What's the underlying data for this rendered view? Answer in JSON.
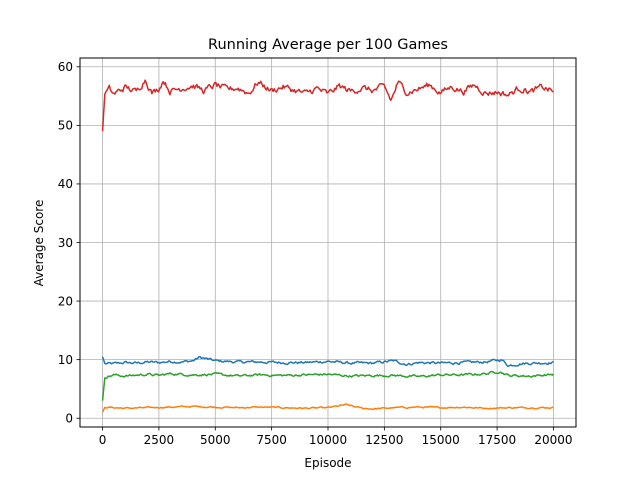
{
  "chart_data": {
    "type": "line",
    "title": "Running Average per 100 Games",
    "xlabel": "Episode",
    "ylabel": "Average Score",
    "xlim": [
      -1000,
      21000
    ],
    "ylim": [
      -1.5,
      61.5
    ],
    "xticks": [
      0,
      2500,
      5000,
      7500,
      10000,
      12500,
      15000,
      17500,
      20000
    ],
    "yticks": [
      0,
      10,
      20,
      30,
      40,
      50,
      60
    ],
    "grid": true,
    "legend": "none",
    "x_range": [
      0,
      20000
    ],
    "series": [
      {
        "color": "#1f77b4",
        "start": [
          0,
          10.5
        ],
        "points": [
          [
            100,
            9.3
          ],
          [
            500,
            9.3
          ],
          [
            1000,
            9.5
          ],
          [
            1500,
            9.4
          ],
          [
            2000,
            9.6
          ],
          [
            2500,
            9.5
          ],
          [
            3000,
            9.7
          ],
          [
            3500,
            9.6
          ],
          [
            4000,
            9.8
          ],
          [
            4300,
            10.4
          ],
          [
            5000,
            9.8
          ],
          [
            5500,
            9.7
          ],
          [
            6000,
            9.6
          ],
          [
            7000,
            9.6
          ],
          [
            8000,
            9.5
          ],
          [
            9000,
            9.5
          ],
          [
            10000,
            9.7
          ],
          [
            11000,
            9.4
          ],
          [
            12000,
            9.4
          ],
          [
            12900,
            9.8
          ],
          [
            13500,
            9.2
          ],
          [
            14000,
            9.5
          ],
          [
            15000,
            9.4
          ],
          [
            16000,
            9.5
          ],
          [
            17000,
            9.6
          ],
          [
            17700,
            10.0
          ],
          [
            18000,
            9.0
          ],
          [
            18500,
            9.3
          ],
          [
            19000,
            9.4
          ],
          [
            20000,
            9.5
          ]
        ]
      },
      {
        "color": "#ff7f0e",
        "start": [
          0,
          1.0
        ],
        "points": [
          [
            100,
            1.9
          ],
          [
            1000,
            1.7
          ],
          [
            2000,
            1.8
          ],
          [
            3000,
            1.9
          ],
          [
            4000,
            2.0
          ],
          [
            5000,
            1.9
          ],
          [
            6000,
            1.8
          ],
          [
            7000,
            1.9
          ],
          [
            8000,
            1.8
          ],
          [
            9000,
            1.7
          ],
          [
            10000,
            1.8
          ],
          [
            10800,
            2.3
          ],
          [
            11500,
            1.7
          ],
          [
            12000,
            1.6
          ],
          [
            13000,
            1.8
          ],
          [
            14000,
            1.9
          ],
          [
            15000,
            1.8
          ],
          [
            16000,
            1.9
          ],
          [
            17000,
            1.7
          ],
          [
            18000,
            1.8
          ],
          [
            19000,
            1.8
          ],
          [
            20000,
            1.8
          ]
        ]
      },
      {
        "color": "#2ca02c",
        "start": [
          0,
          3.0
        ],
        "points": [
          [
            100,
            7.0
          ],
          [
            500,
            7.4
          ],
          [
            1000,
            7.2
          ],
          [
            2000,
            7.5
          ],
          [
            2500,
            7.3
          ],
          [
            3000,
            7.6
          ],
          [
            4000,
            7.4
          ],
          [
            5000,
            7.5
          ],
          [
            6000,
            7.2
          ],
          [
            7000,
            7.4
          ],
          [
            8000,
            7.3
          ],
          [
            9000,
            7.4
          ],
          [
            10000,
            7.5
          ],
          [
            11000,
            7.2
          ],
          [
            12000,
            7.3
          ],
          [
            13000,
            7.3
          ],
          [
            14000,
            7.1
          ],
          [
            15000,
            7.4
          ],
          [
            16000,
            7.4
          ],
          [
            17000,
            7.6
          ],
          [
            17600,
            8.0
          ],
          [
            18000,
            7.3
          ],
          [
            19000,
            7.2
          ],
          [
            20000,
            7.5
          ]
        ]
      },
      {
        "color": "#d62728",
        "start": [
          0,
          49.0
        ],
        "points": [
          [
            100,
            55.5
          ],
          [
            300,
            56.2
          ],
          [
            500,
            55.3
          ],
          [
            1000,
            56.5
          ],
          [
            1500,
            55.7
          ],
          [
            1900,
            58.0
          ],
          [
            2200,
            55.5
          ],
          [
            2500,
            56.3
          ],
          [
            2700,
            57.8
          ],
          [
            3000,
            55.8
          ],
          [
            3500,
            56.4
          ],
          [
            4000,
            56.8
          ],
          [
            4500,
            55.9
          ],
          [
            5000,
            56.9
          ],
          [
            5500,
            56.1
          ],
          [
            6000,
            56.4
          ],
          [
            6500,
            55.5
          ],
          [
            6900,
            57.4
          ],
          [
            7500,
            55.9
          ],
          [
            8000,
            56.6
          ],
          [
            8500,
            56.0
          ],
          [
            9000,
            55.4
          ],
          [
            9500,
            56.3
          ],
          [
            10000,
            55.3
          ],
          [
            10500,
            56.7
          ],
          [
            11000,
            55.8
          ],
          [
            11500,
            56.4
          ],
          [
            12000,
            55.9
          ],
          [
            12500,
            56.6
          ],
          [
            12800,
            54.2
          ],
          [
            13100,
            57.3
          ],
          [
            13500,
            55.7
          ],
          [
            14000,
            56.2
          ],
          [
            14500,
            56.9
          ],
          [
            15000,
            55.6
          ],
          [
            15500,
            56.6
          ],
          [
            16000,
            55.8
          ],
          [
            16500,
            56.9
          ],
          [
            17000,
            55.5
          ],
          [
            17500,
            55.7
          ],
          [
            18000,
            55.2
          ],
          [
            18500,
            56.4
          ],
          [
            19000,
            55.7
          ],
          [
            19500,
            56.5
          ],
          [
            20000,
            55.8
          ]
        ]
      }
    ]
  }
}
